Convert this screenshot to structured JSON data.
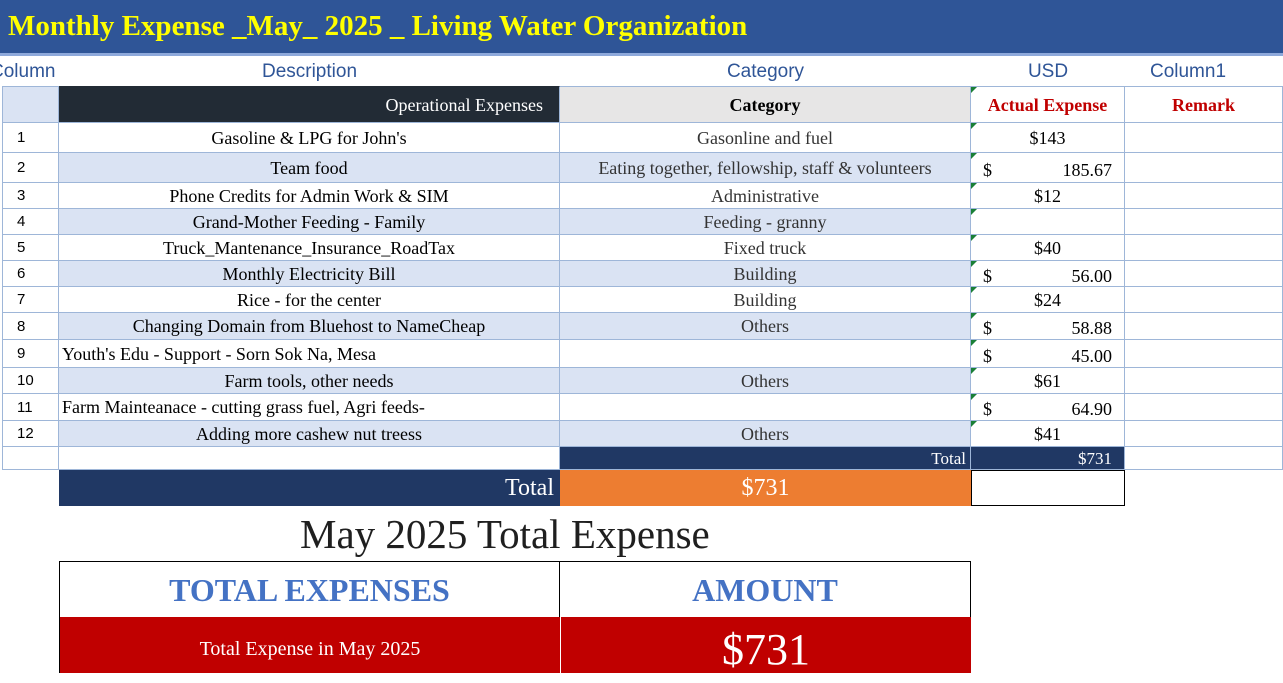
{
  "title": "Monthly Expense _May_ 2025 _ Living Water Organization",
  "column_headers": [
    "Column",
    "Description",
    "Category",
    "USD",
    "Column1"
  ],
  "table_header": {
    "description": "Operational Expenses",
    "category": "Category",
    "actual": "Actual Expense",
    "remark": "Remark"
  },
  "rows": [
    {
      "no": "1",
      "desc": "Gasoline & LPG for John's",
      "category": "Gasonline and fuel",
      "usd": "$143",
      "acct_sym": "",
      "acct_val": ""
    },
    {
      "no": "2",
      "desc": "Team food",
      "category": "Eating together, fellowship, staff & volunteers",
      "usd": "",
      "acct_sym": "$",
      "acct_val": "185.67"
    },
    {
      "no": "3",
      "desc": "Phone Credits for Admin Work & SIM",
      "category": "Administrative",
      "usd": "$12",
      "acct_sym": "",
      "acct_val": ""
    },
    {
      "no": "4",
      "desc": "Grand-Mother Feeding - Family",
      "category": "Feeding - granny",
      "usd": "",
      "acct_sym": "",
      "acct_val": ""
    },
    {
      "no": "5",
      "desc": "Truck_Mantenance_Insurance_RoadTax",
      "category": "Fixed truck",
      "usd": "$40",
      "acct_sym": "",
      "acct_val": ""
    },
    {
      "no": "6",
      "desc": "Monthly Electricity Bill",
      "category": "Building",
      "usd": "",
      "acct_sym": "$",
      "acct_val": "56.00"
    },
    {
      "no": "7",
      "desc": "Rice - for the center",
      "category": "Building",
      "usd": "$24",
      "acct_sym": "",
      "acct_val": ""
    },
    {
      "no": "8",
      "desc": "Changing Domain from Bluehost to NameCheap",
      "category": "Others",
      "usd": "",
      "acct_sym": "$",
      "acct_val": "58.88"
    },
    {
      "no": "9",
      "desc": "Youth's Edu - Support - Sorn Sok Na, Mesa",
      "category": "",
      "usd": "",
      "acct_sym": "$",
      "acct_val": "45.00"
    },
    {
      "no": "10",
      "desc": "Farm tools, other needs",
      "category": "Others",
      "usd": "$61",
      "acct_sym": "",
      "acct_val": ""
    },
    {
      "no": "11",
      "desc": "Farm Mainteanace - cutting grass fuel, Agri feeds-",
      "category": "",
      "usd": "",
      "acct_sym": "$",
      "acct_val": "64.90"
    },
    {
      "no": "12",
      "desc": "Adding more cashew nut treess",
      "category": "Others",
      "usd": "$41",
      "acct_sym": "",
      "acct_val": ""
    }
  ],
  "subtotal": {
    "label": "Total",
    "value": "$731"
  },
  "grand_total": {
    "label": "Total",
    "value": "$731"
  },
  "summary": {
    "title": "May 2025 Total Expense",
    "col1": "TOTAL EXPENSES",
    "col2": "AMOUNT",
    "row_label": "Total Expense in May 2025",
    "row_value": "$731"
  },
  "colors": {
    "title_bar": "#2f5597",
    "title_text": "#ffff00",
    "header_dark": "#222b35",
    "red": "#c00000",
    "orange": "#ed7d31",
    "navy": "#203864",
    "row_stripe": "#dae3f3"
  }
}
